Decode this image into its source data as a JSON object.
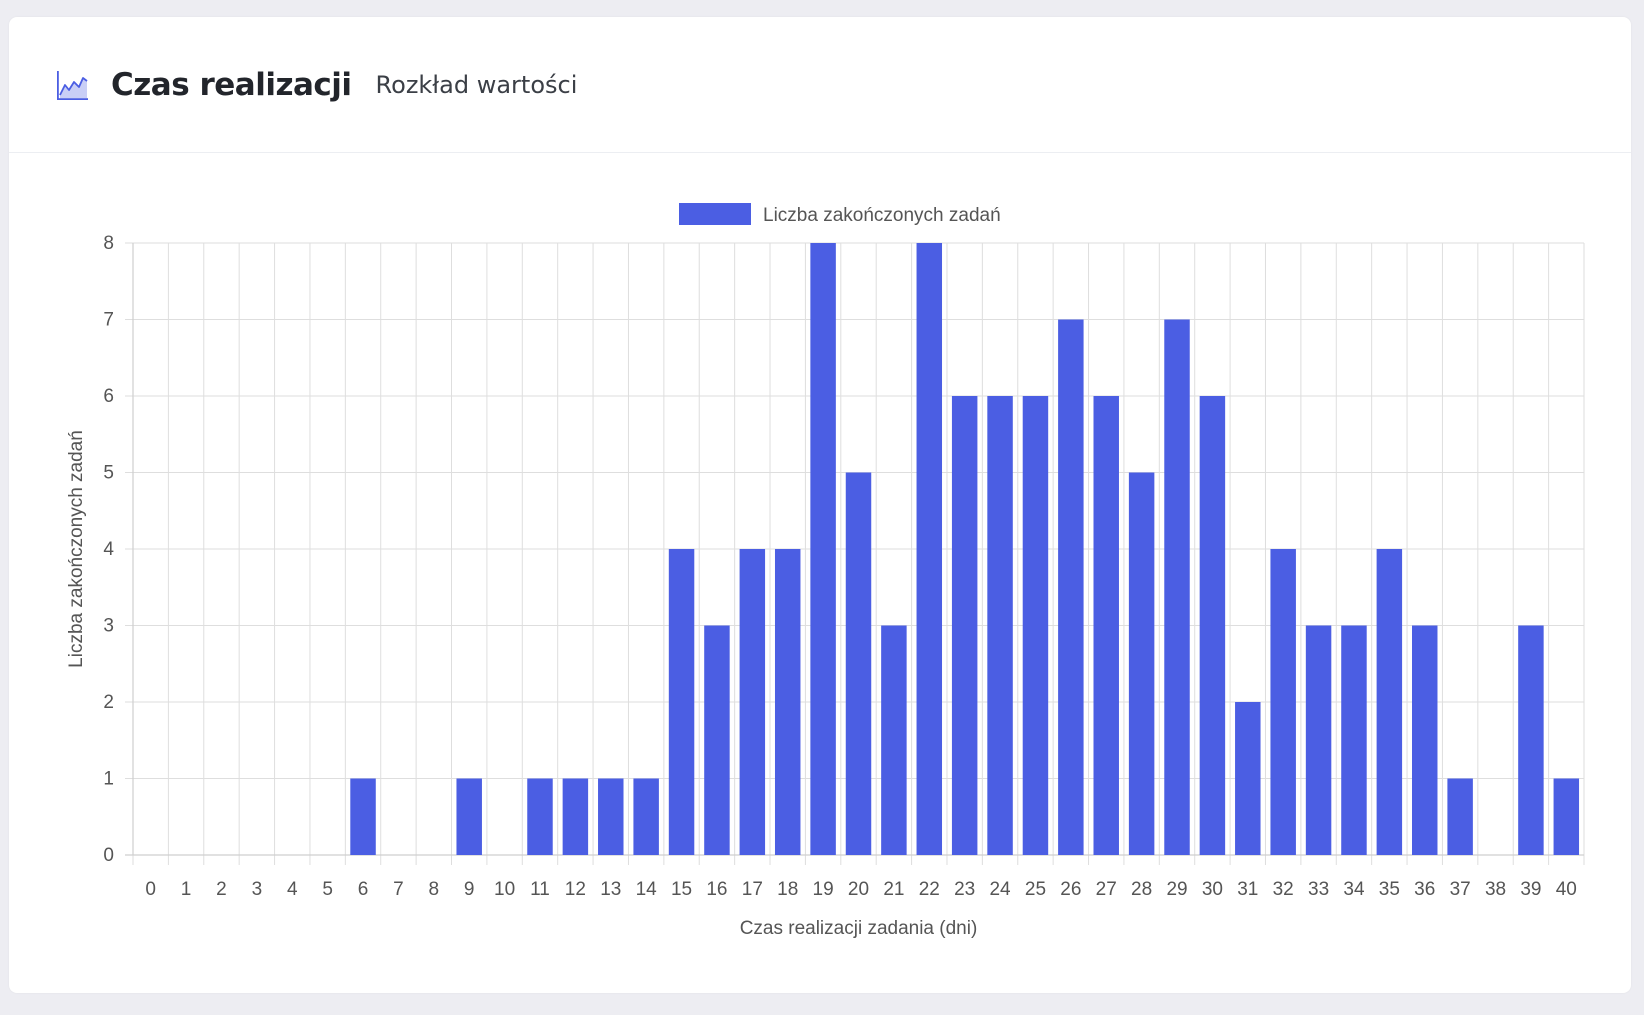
{
  "header": {
    "title": "Czas realizacji",
    "subtitle": "Rozkład wartości",
    "icon": "area-chart-icon"
  },
  "colors": {
    "bar": "#4b5ee3",
    "grid": "#dedede",
    "axis_text": "#555555",
    "title_text": "#22252b"
  },
  "chart_data": {
    "type": "bar",
    "legend": {
      "position": "top",
      "entries": [
        "Liczba zakończonych zadań"
      ]
    },
    "xlabel": "Czas realizacji zadania (dni)",
    "ylabel": "Liczba zakończonych zadań",
    "ylim": [
      0,
      8
    ],
    "yticks": [
      0,
      1,
      2,
      3,
      4,
      5,
      6,
      7,
      8
    ],
    "grid": true,
    "categories": [
      "0",
      "1",
      "2",
      "3",
      "4",
      "5",
      "6",
      "7",
      "8",
      "9",
      "10",
      "11",
      "12",
      "13",
      "14",
      "15",
      "16",
      "17",
      "18",
      "19",
      "20",
      "21",
      "22",
      "23",
      "24",
      "25",
      "26",
      "27",
      "28",
      "29",
      "30",
      "31",
      "32",
      "33",
      "34",
      "35",
      "36",
      "37",
      "38",
      "39",
      "40"
    ],
    "series": [
      {
        "name": "Liczba zakończonych zadań",
        "values": [
          0,
          0,
          0,
          0,
          0,
          0,
          1,
          0,
          0,
          1,
          0,
          1,
          1,
          1,
          1,
          4,
          3,
          4,
          4,
          8,
          5,
          3,
          8,
          6,
          6,
          6,
          7,
          6,
          5,
          7,
          6,
          2,
          4,
          3,
          3,
          4,
          3,
          1,
          0,
          3,
          1
        ]
      }
    ]
  }
}
